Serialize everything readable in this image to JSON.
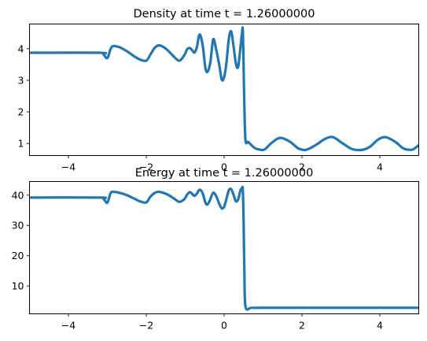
{
  "chart_data": [
    {
      "type": "line",
      "title": "Density at time t =     1.26000000",
      "xlabel": "",
      "ylabel": "",
      "xlim": [
        -5,
        5
      ],
      "ylim": [
        0.62,
        4.78
      ],
      "xticks": [
        -4,
        -2,
        0,
        2,
        4
      ],
      "yticks": [
        1,
        2,
        3,
        4
      ],
      "grid": false,
      "color": "#1f77b4",
      "x": [
        -5.0,
        -3.2,
        -3.1,
        -3.0,
        -2.92,
        -2.85,
        -2.7,
        -2.5,
        -2.3,
        -2.15,
        -2.0,
        -1.9,
        -1.8,
        -1.7,
        -1.6,
        -1.45,
        -1.3,
        -1.15,
        -1.02,
        -0.95,
        -0.88,
        -0.82,
        -0.76,
        -0.7,
        -0.63,
        -0.55,
        -0.48,
        -0.42,
        -0.35,
        -0.28,
        -0.2,
        -0.12,
        -0.06,
        0.0,
        0.06,
        0.12,
        0.18,
        0.24,
        0.3,
        0.36,
        0.42,
        0.46,
        0.48,
        0.5,
        0.52,
        0.55,
        0.62,
        0.7,
        0.8,
        0.95,
        1.05,
        1.25,
        1.45,
        1.7,
        1.9,
        2.1,
        2.35,
        2.6,
        2.8,
        3.05,
        3.3,
        3.55,
        3.75,
        3.95,
        4.15,
        4.4,
        4.6,
        4.8,
        4.9,
        5.0
      ],
      "y": [
        3.87,
        3.87,
        3.82,
        3.7,
        3.98,
        4.08,
        4.05,
        3.92,
        3.75,
        3.65,
        3.62,
        3.8,
        4.0,
        4.1,
        4.08,
        3.95,
        3.76,
        3.62,
        3.8,
        3.98,
        4.02,
        3.95,
        3.88,
        4.05,
        4.45,
        4.1,
        3.38,
        3.28,
        3.6,
        4.3,
        3.95,
        3.45,
        3.02,
        3.1,
        3.55,
        4.3,
        4.55,
        4.1,
        3.55,
        3.42,
        4.05,
        4.5,
        4.6,
        3.5,
        2.2,
        1.1,
        1.05,
        0.95,
        0.85,
        0.8,
        0.82,
        1.05,
        1.18,
        1.05,
        0.85,
        0.8,
        0.95,
        1.15,
        1.2,
        1.0,
        0.82,
        0.8,
        0.9,
        1.12,
        1.2,
        1.05,
        0.85,
        0.8,
        0.85,
        0.95
      ]
    },
    {
      "type": "line",
      "title": "Energy at time t =     1.26000000",
      "xlabel": "",
      "ylabel": "",
      "xlim": [
        -5,
        5
      ],
      "ylim": [
        0.8,
        44.5
      ],
      "xticks": [
        -4,
        -2,
        0,
        2,
        4
      ],
      "yticks": [
        10,
        20,
        30,
        40
      ],
      "grid": false,
      "color": "#1f77b4",
      "x": [
        -5.0,
        -3.2,
        -3.1,
        -3.0,
        -2.92,
        -2.85,
        -2.7,
        -2.5,
        -2.3,
        -2.15,
        -2.0,
        -1.9,
        -1.8,
        -1.7,
        -1.6,
        -1.45,
        -1.3,
        -1.15,
        -1.02,
        -0.95,
        -0.88,
        -0.82,
        -0.76,
        -0.7,
        -0.63,
        -0.55,
        -0.48,
        -0.42,
        -0.35,
        -0.28,
        -0.2,
        -0.12,
        -0.06,
        0.0,
        0.06,
        0.12,
        0.18,
        0.24,
        0.3,
        0.36,
        0.42,
        0.46,
        0.48,
        0.5,
        0.52,
        0.55,
        0.7,
        1.0,
        2.0,
        3.0,
        4.0,
        5.0
      ],
      "y": [
        39.2,
        39.2,
        38.8,
        37.5,
        40.6,
        41.1,
        40.8,
        40.0,
        38.8,
        37.9,
        37.6,
        39.4,
        40.6,
        41.1,
        40.9,
        40.2,
        39.0,
        37.8,
        38.7,
        40.2,
        41.0,
        40.4,
        39.8,
        40.5,
        41.8,
        40.6,
        37.5,
        37.0,
        38.8,
        40.8,
        39.6,
        37.0,
        35.6,
        36.2,
        38.8,
        41.6,
        42.0,
        40.2,
        38.0,
        38.6,
        41.6,
        42.3,
        41.8,
        32.0,
        15.0,
        3.2,
        2.8,
        2.8,
        2.8,
        2.8,
        2.8,
        2.8
      ]
    }
  ]
}
